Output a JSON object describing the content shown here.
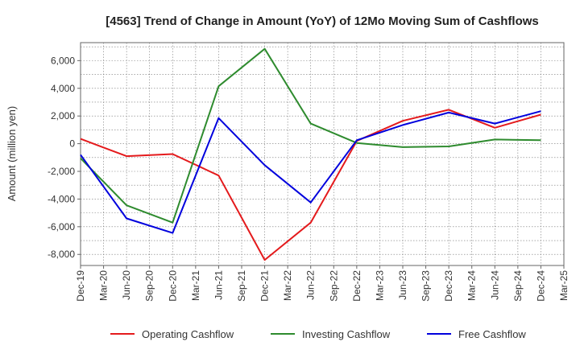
{
  "chart_data": {
    "type": "line",
    "title": "[4563]  Trend of Change in Amount (YoY) of 12Mo Moving Sum of Cashflows",
    "xlabel": "",
    "ylabel": "Amount (million yen)",
    "categories": [
      "Dec-19",
      "Mar-20",
      "Jun-20",
      "Sep-20",
      "Dec-20",
      "Mar-21",
      "Jun-21",
      "Sep-21",
      "Dec-21",
      "Mar-22",
      "Jun-22",
      "Sep-22",
      "Dec-22",
      "Mar-23",
      "Jun-23",
      "Sep-23",
      "Dec-23",
      "Mar-24",
      "Jun-24",
      "Sep-24",
      "Dec-24",
      "Mar-25"
    ],
    "ylim": [
      -8800,
      7300
    ],
    "yticks": [
      -8000,
      -6000,
      -4000,
      -2000,
      0,
      2000,
      4000,
      6000
    ],
    "ytick_labels": [
      "-8,000",
      "-6,000",
      "-4,000",
      "-2,000",
      "0",
      "2,000",
      "4,000",
      "6,000"
    ],
    "grid": true,
    "legend_position": "bottom",
    "series": [
      {
        "name": "Operating Cashflow",
        "color": "#e41a1c",
        "points": [
          [
            0,
            350
          ],
          [
            2,
            -900
          ],
          [
            4,
            -750
          ],
          [
            6,
            -2300
          ],
          [
            8,
            -8400
          ],
          [
            10,
            -5700
          ],
          [
            12,
            200
          ],
          [
            14,
            1650
          ],
          [
            16,
            2450
          ],
          [
            18,
            1150
          ],
          [
            20,
            2100
          ]
        ]
      },
      {
        "name": "Investing Cashflow",
        "color": "#2e8b2e",
        "points": [
          [
            0,
            -1050
          ],
          [
            2,
            -4450
          ],
          [
            4,
            -5700
          ],
          [
            6,
            4150
          ],
          [
            8,
            6850
          ],
          [
            10,
            1450
          ],
          [
            12,
            50
          ],
          [
            14,
            -250
          ],
          [
            16,
            -200
          ],
          [
            18,
            300
          ],
          [
            20,
            250
          ]
        ]
      },
      {
        "name": "Free Cashflow",
        "color": "#0000dd",
        "points": [
          [
            0,
            -800
          ],
          [
            2,
            -5400
          ],
          [
            4,
            -6450
          ],
          [
            6,
            1850
          ],
          [
            8,
            -1550
          ],
          [
            10,
            -4250
          ],
          [
            12,
            250
          ],
          [
            14,
            1350
          ],
          [
            16,
            2250
          ],
          [
            18,
            1450
          ],
          [
            20,
            2350
          ]
        ]
      }
    ]
  }
}
